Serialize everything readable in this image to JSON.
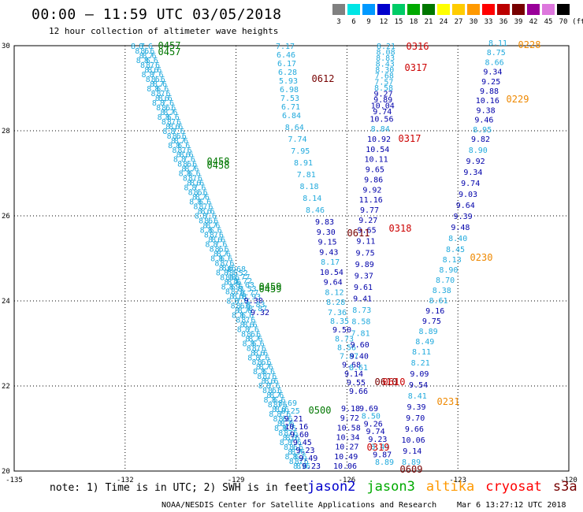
{
  "header": {
    "title": "00:00 – 11:59 UTC 03/05/2018",
    "subtitle": "12 hour collection of altimeter wave heights"
  },
  "legend": {
    "unit": "(ft)",
    "bins": [
      {
        "label": "3",
        "color": "#808080"
      },
      {
        "label": "6",
        "color": "#00e5e5"
      },
      {
        "label": "9",
        "color": "#0099ff"
      },
      {
        "label": "12",
        "color": "#0000cc"
      },
      {
        "label": "15",
        "color": "#00cc66"
      },
      {
        "label": "18",
        "color": "#00aa00"
      },
      {
        "label": "21",
        "color": "#007700"
      },
      {
        "label": "24",
        "color": "#ffff00"
      },
      {
        "label": "27",
        "color": "#ffcc00"
      },
      {
        "label": "30",
        "color": "#ff9900"
      },
      {
        "label": "33",
        "color": "#ff0000"
      },
      {
        "label": "36",
        "color": "#bb0000"
      },
      {
        "label": "39",
        "color": "#770000"
      },
      {
        "label": "42",
        "color": "#990099"
      },
      {
        "label": "45",
        "color": "#dd77dd"
      },
      {
        "label": "70",
        "color": "#000000"
      }
    ]
  },
  "axes": {
    "x_ticks": [
      "-135",
      "-132",
      "-129",
      "-126",
      "-123",
      "-120"
    ],
    "y_ticks": [
      "30",
      "28",
      "26",
      "24",
      "22",
      "20"
    ]
  },
  "colors": {
    "light": "#22aadd",
    "dark": "#0000aa",
    "green": "#007700",
    "red": "#cc0000",
    "dred": "#770000",
    "orange": "#ee8800"
  },
  "tracks": {
    "t1": [
      "7.17",
      "6.46",
      "6.17",
      "6.28",
      "5.93",
      "6.98",
      "7.53",
      "6.71",
      "6.84",
      "8.64",
      "7.74",
      "7.95",
      "8.91",
      "7.81",
      "8.18",
      "8.14",
      "8.46"
    ],
    "t2": [
      "9.83",
      "9.30",
      "9.15",
      "9.43",
      "8.17",
      "10.54",
      "9.64",
      "8.12",
      "8.28",
      "7.36",
      "8.35",
      "9.50",
      "8.73",
      "8.56",
      "7.87",
      "9.68",
      "9.14",
      "9.55",
      "9.66"
    ],
    "t3": [
      "8.21",
      "8.08",
      "8.83",
      "8.43",
      "8.30",
      "7.68",
      "7.57",
      "8.58",
      "9.27",
      "9.89",
      "10.04",
      "9.74",
      "10.56",
      "8.84",
      "10.92",
      "10.54",
      "10.11",
      "9.65",
      "9.86",
      "9.92",
      "11.16",
      "9.77",
      "9.27",
      "9.65",
      "9.11",
      "9.75",
      "9.89",
      "9.37",
      "9.61",
      "9.41",
      "8.73",
      "8.58",
      "7.81",
      "9.60",
      "9.40",
      "8.61"
    ],
    "t4": [
      "9.18",
      "9.72",
      "10.58",
      "10.34",
      "10.27",
      "10.49",
      "10.06"
    ],
    "t5": [
      "9.69",
      "8.50",
      "9.26",
      "9.74",
      "9.23",
      "8.44",
      "9.87",
      "8.89"
    ],
    "t6": [
      "8.11",
      "8.75",
      "8.66",
      "9.34",
      "9.25",
      "9.88",
      "10.16",
      "9.38",
      "9.46",
      "8.95",
      "9.82",
      "8.90",
      "9.92",
      "9.34",
      "9.74",
      "9.03",
      "9.64",
      "9.39",
      "9.48",
      "8.40",
      "8.45",
      "8.13",
      "8.90",
      "8.70",
      "8.38",
      "8.61",
      "9.16",
      "9.75",
      "8.89",
      "8.49",
      "8.11",
      "8.21",
      "9.09",
      "9.54",
      "8.41",
      "9.39",
      "9.70",
      "9.66",
      "10.06",
      "9.14",
      "8.89"
    ],
    "t7": [
      "8.69",
      "8.25",
      "9.21",
      "10.16",
      "9.60",
      "9.45",
      "9.23",
      "9.49",
      "9.23"
    ],
    "t8": [
      "8.68",
      "8.52",
      "8.77",
      "8.72",
      "8.63",
      "8.53",
      "8.77",
      "8.93",
      "9.30",
      "8.83",
      "8.87",
      "9.32"
    ],
    "times": [
      {
        "label": "0457",
        "color": "green"
      },
      {
        "label": "0457",
        "color": "green"
      },
      {
        "label": "0458",
        "color": "green"
      },
      {
        "label": "0458",
        "color": "green"
      },
      {
        "label": "0459",
        "color": "green"
      },
      {
        "label": "0459",
        "color": "green"
      },
      {
        "label": "0500",
        "color": "green"
      },
      {
        "label": "0316",
        "color": "red"
      },
      {
        "label": "0317",
        "color": "red"
      },
      {
        "label": "0317",
        "color": "red"
      },
      {
        "label": "0318",
        "color": "red"
      },
      {
        "label": "0319",
        "color": "red"
      },
      {
        "label": "0612",
        "color": "dred"
      },
      {
        "label": "0611",
        "color": "dred"
      },
      {
        "label": "0610",
        "color": "dred"
      },
      {
        "label": "0610",
        "color": "red"
      },
      {
        "label": "0609",
        "color": "dred"
      },
      {
        "label": "0228",
        "color": "orange"
      },
      {
        "label": "0229",
        "color": "orange"
      },
      {
        "label": "0230",
        "color": "orange"
      },
      {
        "label": "0231",
        "color": "orange"
      }
    ]
  },
  "footer": {
    "note": "note: 1) Time is in UTC; 2) SWH is in feet",
    "satellites": [
      {
        "name": "jason2",
        "color": "#0000cc"
      },
      {
        "name": "jason3",
        "color": "#00aa00"
      },
      {
        "name": "altika",
        "color": "#ff9900"
      },
      {
        "name": "cryosat",
        "color": "#ff0000"
      },
      {
        "name": "s3a",
        "color": "#770000"
      }
    ],
    "credit": "NOAA/NESDIS Center for Satellite Applications and Research",
    "timestamp": "Mar  6 13:27:12 UTC 2018"
  }
}
